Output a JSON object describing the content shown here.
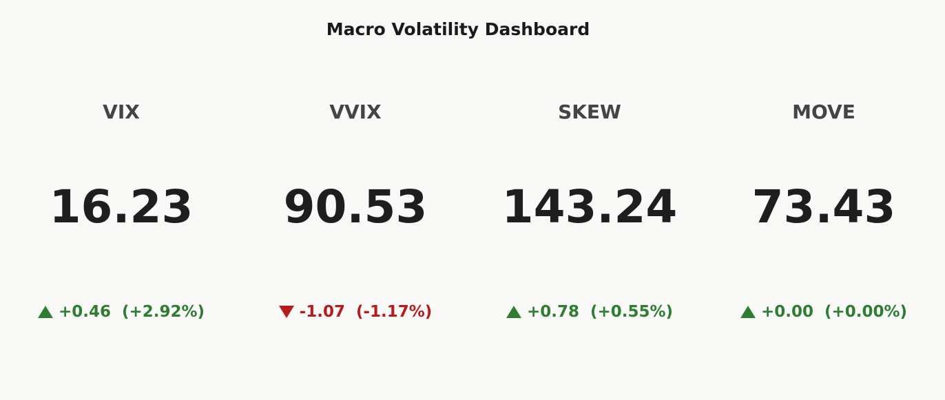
{
  "title": "Macro Volatility Dashboard",
  "up_color": "#2e7d32",
  "down_color": "#b71c1c",
  "indicators": [
    {
      "name": "VIX",
      "value": 16.23,
      "change": {
        "value": 0.46,
        "label": "+0.46"
      },
      "change_pct": {
        "value": 2.92,
        "label": "(+2.92%)"
      }
    },
    {
      "name": "VVIX",
      "value": 90.53,
      "change": {
        "value": -1.07,
        "label": "-1.07"
      },
      "change_pct": {
        "value": -1.17,
        "label": "(-1.17%)"
      }
    },
    {
      "name": "SKEW",
      "value": 143.24,
      "change": {
        "value": 0.78,
        "label": "+0.78"
      },
      "change_pct": {
        "value": 0.55,
        "label": "(+0.55%)"
      }
    },
    {
      "name": "MOVE",
      "value": 73.43,
      "change": {
        "value": 0,
        "label": "+0.00"
      },
      "change_pct": {
        "value": 0,
        "label": "(+0.00%)"
      }
    }
  ]
}
